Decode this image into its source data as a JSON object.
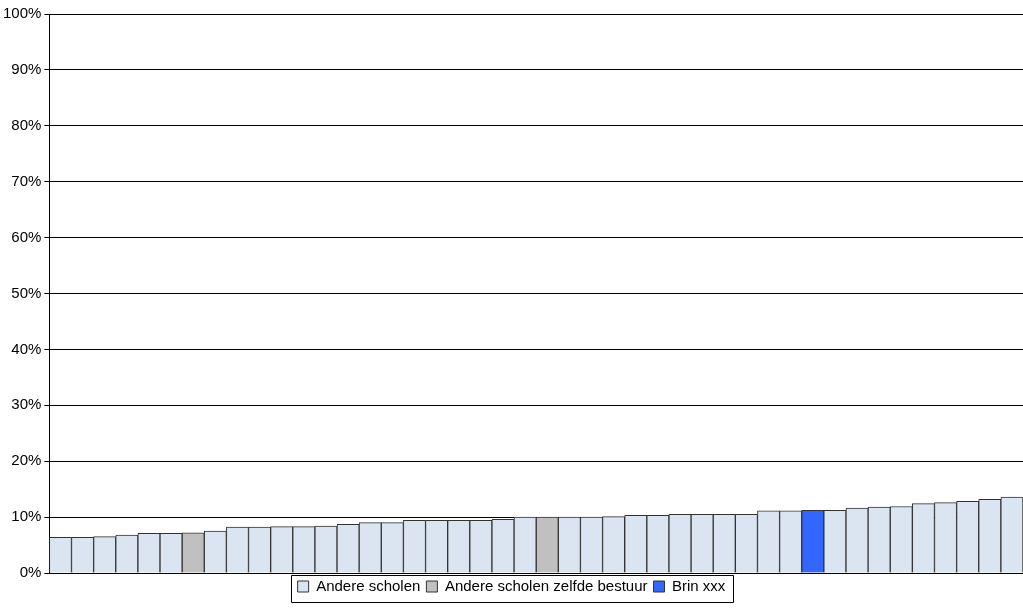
{
  "chart_data": {
    "type": "bar",
    "categories": [
      null,
      null,
      null,
      null,
      null,
      null,
      null,
      null,
      null,
      null,
      null,
      null,
      null,
      null,
      null,
      null,
      null,
      null,
      null,
      null,
      null,
      null,
      null,
      null,
      null,
      null,
      null,
      null,
      null,
      null,
      null,
      null,
      null,
      null,
      null,
      null,
      null,
      null,
      null,
      null,
      null,
      null,
      null,
      null
    ],
    "series": [
      {
        "name": "Andere scholen",
        "color": "#dbe5f1",
        "values": [
          6.4,
          6.4,
          6.5,
          6.8,
          7.1,
          7.1,
          null,
          7.5,
          8.2,
          8.2,
          8.3,
          8.3,
          8.4,
          8.7,
          9.0,
          9.0,
          9.4,
          9.4,
          9.4,
          9.4,
          9.6,
          10.0,
          null,
          10.0,
          10.0,
          10.1,
          10.3,
          10.3,
          10.5,
          10.5,
          10.5,
          10.5,
          11.1,
          11.1,
          null,
          11.2,
          11.6,
          11.8,
          11.9,
          12.4,
          12.6,
          12.8,
          13.2,
          13.6
        ]
      },
      {
        "name": "Andere scholen zelfde bestuur",
        "color": "#c0c0c0",
        "values": [
          null,
          null,
          null,
          null,
          null,
          null,
          7.2,
          null,
          null,
          null,
          null,
          null,
          null,
          null,
          null,
          null,
          null,
          null,
          null,
          null,
          null,
          null,
          10.0,
          null,
          null,
          null,
          null,
          null,
          null,
          null,
          null,
          null,
          null,
          null,
          null,
          null,
          null,
          null,
          null,
          null,
          null,
          null,
          null,
          null
        ]
      },
      {
        "name": "Brin xxx",
        "color": "#3366ff",
        "values": [
          null,
          null,
          null,
          null,
          null,
          null,
          null,
          null,
          null,
          null,
          null,
          null,
          null,
          null,
          null,
          null,
          null,
          null,
          null,
          null,
          null,
          null,
          null,
          null,
          null,
          null,
          null,
          null,
          null,
          null,
          null,
          null,
          null,
          null,
          11.2,
          null,
          null,
          null,
          null,
          null,
          null,
          null,
          null,
          null
        ]
      }
    ],
    "ylim": [
      0,
      100
    ],
    "yticks": [
      {
        "value": 0,
        "label": "0%"
      },
      {
        "value": 10,
        "label": "10%"
      },
      {
        "value": 20,
        "label": "20%"
      },
      {
        "value": 30,
        "label": "30%"
      },
      {
        "value": 40,
        "label": "40%"
      },
      {
        "value": 50,
        "label": "50%"
      },
      {
        "value": 60,
        "label": "60%"
      },
      {
        "value": 70,
        "label": "70%"
      },
      {
        "value": 80,
        "label": "80%"
      },
      {
        "value": 90,
        "label": "90%"
      },
      {
        "value": 100,
        "label": "100%"
      }
    ],
    "grid": "y",
    "legend": "bottom"
  }
}
